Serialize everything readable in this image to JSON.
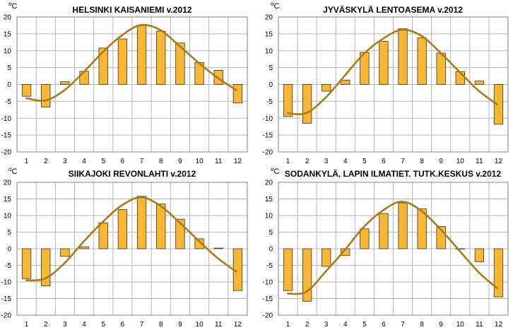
{
  "unit": {
    "sup": "o",
    "base": "C"
  },
  "colors": {
    "bar": "#f7b733",
    "bar_edge": "#333333",
    "line": "#a87b16",
    "grid": "#b5b5b5"
  },
  "chart_data": [
    {
      "type": "bar",
      "title": "HELSINKI KAISANIEMI v.2012",
      "categories": [
        "1",
        "2",
        "3",
        "4",
        "5",
        "6",
        "7",
        "8",
        "9",
        "10",
        "11",
        "12"
      ],
      "yticks": [
        "20",
        "15",
        "10",
        "5",
        "0",
        "-5",
        "-10",
        "-15",
        "-20"
      ],
      "ylim": [
        -20,
        20
      ],
      "grid": true,
      "series": [
        {
          "kind": "bar",
          "values": [
            -3.5,
            -6.7,
            0.8,
            3.9,
            10.8,
            13.5,
            17.5,
            15.8,
            12.3,
            6.5,
            4.2,
            -5.5
          ]
        },
        {
          "kind": "line",
          "values": [
            -4.0,
            -4.8,
            -1.8,
            3.5,
            9.5,
            14.5,
            17.6,
            16.2,
            11.5,
            6.5,
            2.0,
            -1.8
          ]
        }
      ]
    },
    {
      "type": "bar",
      "title": "JYVÄSKYLÄ LENTOASEMA v.2012",
      "categories": [
        "1",
        "2",
        "3",
        "4",
        "5",
        "6",
        "7",
        "8",
        "9",
        "10",
        "11",
        "12"
      ],
      "yticks": [
        "20",
        "15",
        "10",
        "5",
        "0",
        "-5",
        "-10",
        "-15",
        "-20"
      ],
      "ylim": [
        -20,
        20
      ],
      "grid": true,
      "series": [
        {
          "kind": "bar",
          "values": [
            -9.5,
            -11.5,
            -2.0,
            1.3,
            9.5,
            12.8,
            16.5,
            13.8,
            9.3,
            3.8,
            1.0,
            -11.8
          ]
        },
        {
          "kind": "line",
          "values": [
            -8.5,
            -8.5,
            -4.0,
            2.5,
            9.0,
            13.5,
            16.2,
            14.5,
            9.5,
            3.8,
            -1.8,
            -6.0
          ]
        }
      ]
    },
    {
      "type": "bar",
      "title": "SIIKAJOKI REVONLAHTI v.2012",
      "categories": [
        "1",
        "2",
        "3",
        "4",
        "5",
        "6",
        "7",
        "8",
        "9",
        "10",
        "11",
        "12"
      ],
      "yticks": [
        "20",
        "15",
        "10",
        "5",
        "0",
        "-5",
        "-10",
        "-15",
        "-20"
      ],
      "ylim": [
        -20,
        20
      ],
      "grid": true,
      "series": [
        {
          "kind": "bar",
          "values": [
            -9.0,
            -11.2,
            -2.3,
            0.6,
            7.8,
            11.8,
            15.8,
            13.5,
            8.9,
            3.0,
            0.2,
            -12.6
          ]
        },
        {
          "kind": "line",
          "values": [
            -9.5,
            -9.0,
            -4.5,
            2.0,
            8.0,
            13.0,
            15.5,
            13.0,
            8.0,
            2.5,
            -2.8,
            -7.0
          ]
        }
      ]
    },
    {
      "type": "bar",
      "title": "SODANKYLÄ, LAPIN ILMATIET. TUTK.KESKUS v.2012",
      "categories": [
        "1",
        "2",
        "3",
        "4",
        "5",
        "6",
        "7",
        "8",
        "9",
        "10",
        "11",
        "12"
      ],
      "yticks": [
        "20",
        "15",
        "10",
        "5",
        "0",
        "-5",
        "-10",
        "-15",
        "-20"
      ],
      "ylim": [
        -20,
        20
      ],
      "grid": true,
      "series": [
        {
          "kind": "bar",
          "values": [
            -12.6,
            -15.8,
            -5.3,
            -2.0,
            6.0,
            10.6,
            13.8,
            12.0,
            6.7,
            0.0,
            -3.9,
            -14.5
          ]
        },
        {
          "kind": "line",
          "values": [
            -13.5,
            -13.0,
            -7.0,
            -0.5,
            6.5,
            11.5,
            14.2,
            11.5,
            6.0,
            -0.5,
            -7.0,
            -12.0
          ]
        }
      ]
    }
  ]
}
